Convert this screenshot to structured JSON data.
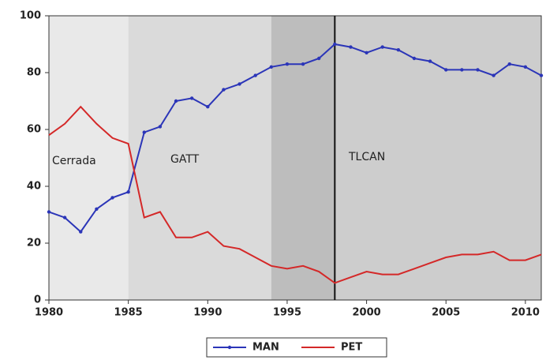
{
  "chart_data": {
    "type": "line",
    "x": [
      1980,
      1981,
      1982,
      1983,
      1984,
      1985,
      1986,
      1987,
      1988,
      1989,
      1990,
      1991,
      1992,
      1993,
      1994,
      1995,
      1996,
      1997,
      1998,
      1999,
      2000,
      2001,
      2002,
      2003,
      2004,
      2005,
      2006,
      2007,
      2008,
      2009,
      2010,
      2011
    ],
    "series": [
      {
        "name": "MAN",
        "color": "#2b35b8",
        "values": [
          31,
          29,
          24,
          32,
          36,
          38,
          59,
          61,
          70,
          71,
          68,
          74,
          76,
          79,
          82,
          83,
          83,
          85,
          90,
          89,
          87,
          89,
          88,
          85,
          84,
          81,
          81,
          81,
          79,
          83,
          82,
          79
        ]
      },
      {
        "name": "PET",
        "color": "#d42828",
        "values": [
          58,
          62,
          68,
          62,
          57,
          55,
          29,
          31,
          22,
          22,
          24,
          19,
          18,
          15,
          12,
          11,
          12,
          10,
          6,
          8,
          10,
          9,
          9,
          11,
          13,
          15,
          16,
          16,
          17,
          14,
          14,
          16
        ]
      }
    ],
    "xlim": [
      1980,
      2011
    ],
    "xticks": [
      1980,
      1985,
      1990,
      1995,
      2000,
      2005,
      2010
    ],
    "ylim": [
      0,
      100
    ],
    "yticks": [
      0,
      20,
      40,
      60,
      80,
      100
    ],
    "regions": [
      {
        "start": 1980,
        "end": 1985,
        "color": "#e9e9e9"
      },
      {
        "start": 1985,
        "end": 1994,
        "color": "#dadada"
      },
      {
        "start": 1994,
        "end": 1998,
        "color": "#bdbdbd"
      },
      {
        "start": 1998,
        "end": 2011,
        "color": "#cdcdcd"
      }
    ],
    "vline": 1998,
    "annotations": [
      "Cerrada",
      "GATT",
      "TLCAN"
    ],
    "legend": "bottom"
  }
}
